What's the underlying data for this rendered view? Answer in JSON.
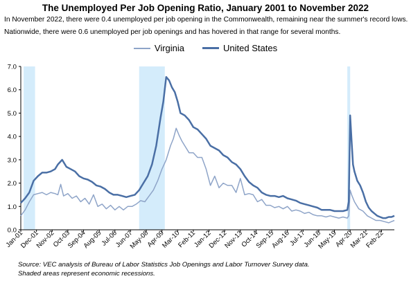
{
  "chart_data": {
    "type": "line",
    "title": "The Unemployed Per Job Opening Ratio, January 2001 to November 2022",
    "subtitle_lines": [
      "In November 2022, there were 0.4 unemployed per job opening in the Commonwealth, remaining near the summer's record lows.",
      "Nationwide, there were  0.6 unemployed per job openings and has hovered in that range for several months."
    ],
    "footnotes": [
      "Source: VEC analysis of Bureau of Labor Statistics Job Openings and Labor Turnover Survey data.",
      "Shaded areas represent economic recessions."
    ],
    "xlabel": "",
    "ylabel": "",
    "ylim": [
      0,
      7
    ],
    "yticks": [
      "0.0",
      "1.0",
      "2.0",
      "3.0",
      "4.0",
      "5.0",
      "6.0",
      "7.0"
    ],
    "xlim": [
      "2001-01",
      "2022-11"
    ],
    "xticks": [
      "Jan-01",
      "Dec-01",
      "Nov-02",
      "Oct-03",
      "Sep-04",
      "Aug-05",
      "Jul-06",
      "Jun-07",
      "May-08",
      "Apr-09",
      "Mar-10",
      "Feb-11",
      "Jan-12",
      "Dec-12",
      "Nov-13",
      "Oct-14",
      "Sep-15",
      "Aug-16",
      "Jul-17",
      "Jun-18",
      "May-19",
      "Apr-20",
      "Mar-21",
      "Feb-22"
    ],
    "grid": false,
    "legend_position": "top-center",
    "recessions": [
      [
        "2001-03",
        "2001-11"
      ],
      [
        "2007-12",
        "2009-06"
      ],
      [
        "2020-02",
        "2020-04"
      ]
    ],
    "recession_color": "#d4ecfb",
    "series": [
      {
        "name": "Virginia",
        "color": "#8ea4c8",
        "points": [
          [
            "2001-01",
            0.6
          ],
          [
            "2001-04",
            0.85
          ],
          [
            "2001-07",
            1.2
          ],
          [
            "2001-10",
            1.5
          ],
          [
            "2002-01",
            1.55
          ],
          [
            "2002-04",
            1.6
          ],
          [
            "2002-07",
            1.5
          ],
          [
            "2002-10",
            1.6
          ],
          [
            "2003-01",
            1.55
          ],
          [
            "2003-03",
            1.5
          ],
          [
            "2003-05",
            1.95
          ],
          [
            "2003-07",
            1.45
          ],
          [
            "2003-10",
            1.55
          ],
          [
            "2004-01",
            1.35
          ],
          [
            "2004-04",
            1.45
          ],
          [
            "2004-07",
            1.2
          ],
          [
            "2004-10",
            1.35
          ],
          [
            "2005-01",
            1.1
          ],
          [
            "2005-04",
            1.5
          ],
          [
            "2005-07",
            1.0
          ],
          [
            "2005-10",
            1.1
          ],
          [
            "2006-01",
            0.9
          ],
          [
            "2006-04",
            1.05
          ],
          [
            "2006-07",
            0.85
          ],
          [
            "2006-10",
            1.0
          ],
          [
            "2007-01",
            0.85
          ],
          [
            "2007-04",
            1.0
          ],
          [
            "2007-07",
            1.0
          ],
          [
            "2007-10",
            1.1
          ],
          [
            "2008-01",
            1.25
          ],
          [
            "2008-04",
            1.2
          ],
          [
            "2008-07",
            1.45
          ],
          [
            "2008-10",
            1.7
          ],
          [
            "2009-01",
            2.1
          ],
          [
            "2009-04",
            2.6
          ],
          [
            "2009-07",
            3.0
          ],
          [
            "2009-10",
            3.6
          ],
          [
            "2009-12",
            3.9
          ],
          [
            "2010-02",
            4.35
          ],
          [
            "2010-04",
            4.05
          ],
          [
            "2010-06",
            3.8
          ],
          [
            "2010-08",
            3.6
          ],
          [
            "2010-11",
            3.3
          ],
          [
            "2011-02",
            3.3
          ],
          [
            "2011-05",
            3.1
          ],
          [
            "2011-08",
            3.1
          ],
          [
            "2011-11",
            2.6
          ],
          [
            "2012-02",
            1.9
          ],
          [
            "2012-05",
            2.3
          ],
          [
            "2012-08",
            1.8
          ],
          [
            "2012-11",
            2.0
          ],
          [
            "2013-02",
            1.9
          ],
          [
            "2013-05",
            1.9
          ],
          [
            "2013-08",
            1.6
          ],
          [
            "2013-11",
            2.2
          ],
          [
            "2014-02",
            1.5
          ],
          [
            "2014-05",
            1.55
          ],
          [
            "2014-08",
            1.5
          ],
          [
            "2014-11",
            1.2
          ],
          [
            "2015-02",
            1.3
          ],
          [
            "2015-05",
            1.05
          ],
          [
            "2015-08",
            1.05
          ],
          [
            "2015-11",
            0.95
          ],
          [
            "2016-02",
            1.0
          ],
          [
            "2016-05",
            0.9
          ],
          [
            "2016-08",
            1.0
          ],
          [
            "2016-11",
            0.8
          ],
          [
            "2017-02",
            0.85
          ],
          [
            "2017-05",
            0.8
          ],
          [
            "2017-08",
            0.7
          ],
          [
            "2017-11",
            0.75
          ],
          [
            "2018-02",
            0.65
          ],
          [
            "2018-05",
            0.6
          ],
          [
            "2018-08",
            0.6
          ],
          [
            "2018-11",
            0.55
          ],
          [
            "2019-02",
            0.6
          ],
          [
            "2019-05",
            0.55
          ],
          [
            "2019-08",
            0.5
          ],
          [
            "2019-11",
            0.55
          ],
          [
            "2020-02",
            0.5
          ],
          [
            "2020-03",
            0.6
          ],
          [
            "2020-04",
            1.7
          ],
          [
            "2020-05",
            1.5
          ],
          [
            "2020-07",
            1.2
          ],
          [
            "2020-10",
            0.9
          ],
          [
            "2021-01",
            0.8
          ],
          [
            "2021-04",
            0.6
          ],
          [
            "2021-07",
            0.5
          ],
          [
            "2021-10",
            0.4
          ],
          [
            "2022-01",
            0.4
          ],
          [
            "2022-04",
            0.35
          ],
          [
            "2022-07",
            0.3
          ],
          [
            "2022-09",
            0.35
          ],
          [
            "2022-11",
            0.4
          ]
        ]
      },
      {
        "name": "United States",
        "color": "#4a6fa5",
        "points": [
          [
            "2001-01",
            1.15
          ],
          [
            "2001-04",
            1.35
          ],
          [
            "2001-07",
            1.6
          ],
          [
            "2001-10",
            2.1
          ],
          [
            "2002-01",
            2.3
          ],
          [
            "2002-04",
            2.45
          ],
          [
            "2002-07",
            2.45
          ],
          [
            "2002-10",
            2.5
          ],
          [
            "2003-01",
            2.6
          ],
          [
            "2003-03",
            2.8
          ],
          [
            "2003-06",
            3.0
          ],
          [
            "2003-09",
            2.7
          ],
          [
            "2003-12",
            2.6
          ],
          [
            "2004-03",
            2.5
          ],
          [
            "2004-06",
            2.3
          ],
          [
            "2004-09",
            2.2
          ],
          [
            "2004-12",
            2.15
          ],
          [
            "2005-03",
            2.05
          ],
          [
            "2005-06",
            1.9
          ],
          [
            "2005-09",
            1.85
          ],
          [
            "2005-12",
            1.75
          ],
          [
            "2006-03",
            1.6
          ],
          [
            "2006-06",
            1.5
          ],
          [
            "2006-09",
            1.5
          ],
          [
            "2006-12",
            1.45
          ],
          [
            "2007-03",
            1.4
          ],
          [
            "2007-06",
            1.45
          ],
          [
            "2007-09",
            1.5
          ],
          [
            "2007-12",
            1.7
          ],
          [
            "2008-03",
            2.0
          ],
          [
            "2008-06",
            2.3
          ],
          [
            "2008-09",
            2.8
          ],
          [
            "2008-12",
            3.6
          ],
          [
            "2009-03",
            4.8
          ],
          [
            "2009-05",
            5.5
          ],
          [
            "2009-07",
            6.55
          ],
          [
            "2009-09",
            6.4
          ],
          [
            "2009-11",
            6.1
          ],
          [
            "2010-01",
            5.9
          ],
          [
            "2010-03",
            5.5
          ],
          [
            "2010-05",
            5.0
          ],
          [
            "2010-08",
            4.9
          ],
          [
            "2010-11",
            4.7
          ],
          [
            "2011-02",
            4.4
          ],
          [
            "2011-05",
            4.3
          ],
          [
            "2011-08",
            4.1
          ],
          [
            "2011-11",
            3.9
          ],
          [
            "2012-02",
            3.6
          ],
          [
            "2012-05",
            3.5
          ],
          [
            "2012-08",
            3.4
          ],
          [
            "2012-11",
            3.2
          ],
          [
            "2013-02",
            3.1
          ],
          [
            "2013-05",
            2.9
          ],
          [
            "2013-08",
            2.8
          ],
          [
            "2013-11",
            2.6
          ],
          [
            "2014-02",
            2.3
          ],
          [
            "2014-05",
            2.05
          ],
          [
            "2014-08",
            1.9
          ],
          [
            "2014-11",
            1.8
          ],
          [
            "2015-02",
            1.6
          ],
          [
            "2015-05",
            1.5
          ],
          [
            "2015-08",
            1.45
          ],
          [
            "2015-11",
            1.45
          ],
          [
            "2016-02",
            1.4
          ],
          [
            "2016-05",
            1.45
          ],
          [
            "2016-08",
            1.35
          ],
          [
            "2016-11",
            1.3
          ],
          [
            "2017-02",
            1.25
          ],
          [
            "2017-05",
            1.15
          ],
          [
            "2017-08",
            1.1
          ],
          [
            "2017-11",
            1.05
          ],
          [
            "2018-02",
            1.0
          ],
          [
            "2018-05",
            0.95
          ],
          [
            "2018-08",
            0.85
          ],
          [
            "2018-11",
            0.85
          ],
          [
            "2019-02",
            0.85
          ],
          [
            "2019-05",
            0.8
          ],
          [
            "2019-08",
            0.8
          ],
          [
            "2019-11",
            0.8
          ],
          [
            "2020-02",
            0.85
          ],
          [
            "2020-03",
            1.2
          ],
          [
            "2020-04",
            4.9
          ],
          [
            "2020-05",
            3.8
          ],
          [
            "2020-06",
            2.8
          ],
          [
            "2020-07",
            2.5
          ],
          [
            "2020-09",
            2.1
          ],
          [
            "2020-11",
            1.9
          ],
          [
            "2021-01",
            1.6
          ],
          [
            "2021-03",
            1.2
          ],
          [
            "2021-05",
            0.95
          ],
          [
            "2021-07",
            0.8
          ],
          [
            "2021-09",
            0.7
          ],
          [
            "2021-11",
            0.6
          ],
          [
            "2022-01",
            0.55
          ],
          [
            "2022-03",
            0.5
          ],
          [
            "2022-05",
            0.5
          ],
          [
            "2022-07",
            0.55
          ],
          [
            "2022-09",
            0.55
          ],
          [
            "2022-11",
            0.6
          ]
        ]
      }
    ]
  }
}
